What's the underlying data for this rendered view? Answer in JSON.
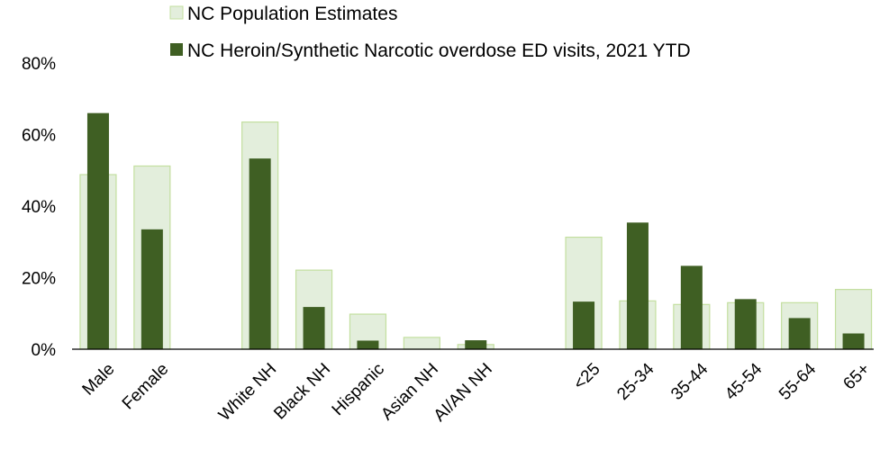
{
  "chart_data": {
    "type": "bar",
    "categories": [
      "Male",
      "Female",
      "",
      "White NH",
      "Black NH",
      "Hispanic",
      "Asian NH",
      "AI/AN NH",
      "",
      "<25",
      "25-34",
      "35-44",
      "45-54",
      "55-64",
      "65+"
    ],
    "series": [
      {
        "name": "NC Population Estimates",
        "values": [
          48.8,
          51.2,
          null,
          63.5,
          22.1,
          9.8,
          3.3,
          1.3,
          null,
          31.3,
          13.5,
          12.5,
          13.0,
          13.0,
          16.7
        ],
        "color": "#e3eedc",
        "stroke": "#c3df9f"
      },
      {
        "name": "NC Heroin/Synthetic Narcotic overdose ED visits, 2021 YTD",
        "values": [
          66.0,
          33.5,
          null,
          53.3,
          11.8,
          2.4,
          0,
          2.5,
          null,
          13.3,
          35.4,
          23.3,
          14.0,
          8.7,
          4.4
        ],
        "color": "#3f5f23"
      }
    ],
    "y_ticks": [
      "0%",
      "20%",
      "40%",
      "60%",
      "80%"
    ],
    "ylim": [
      0,
      80
    ],
    "legend_position": "top",
    "grid": false,
    "xlabel": "",
    "ylabel": ""
  }
}
